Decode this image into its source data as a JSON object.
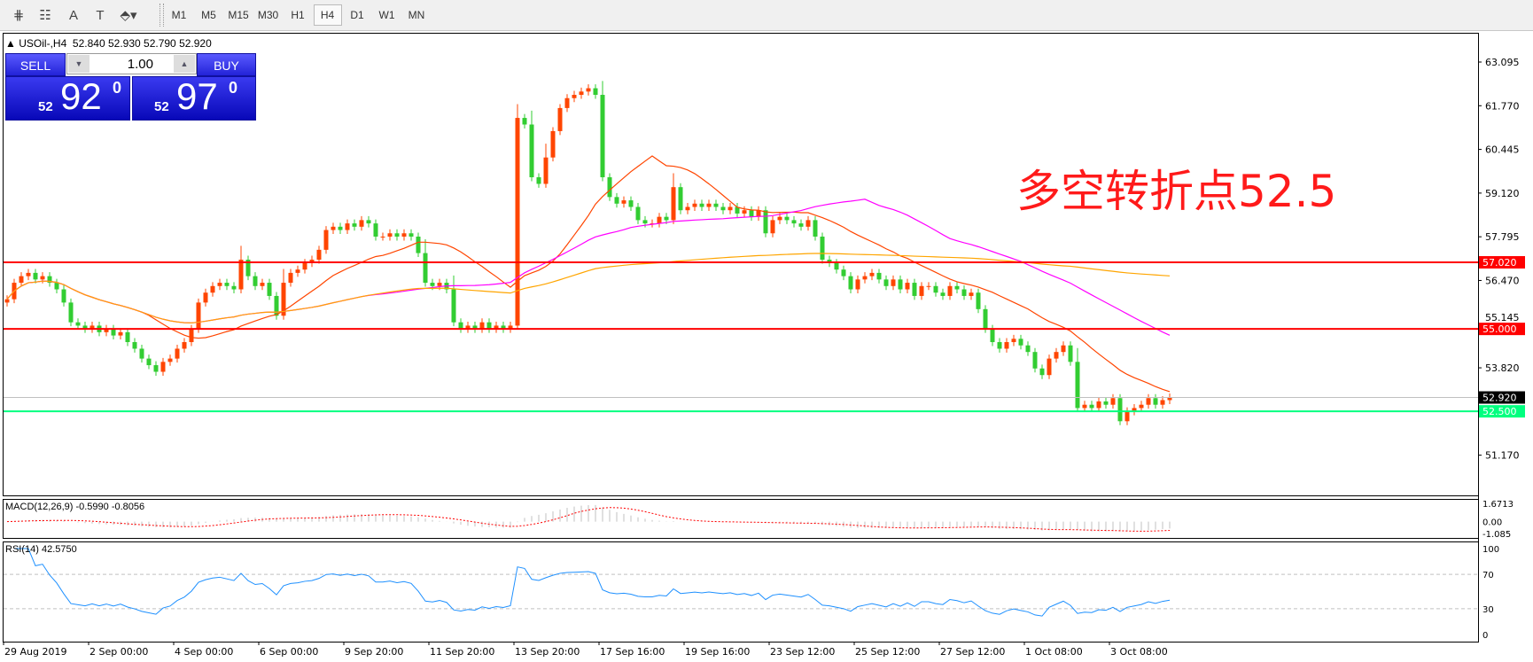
{
  "toolbar": {
    "tools": [
      {
        "name": "fibonacci-expansion-icon",
        "glyph": "⋕"
      },
      {
        "name": "fibonacci-fan-icon",
        "glyph": "☷"
      },
      {
        "name": "text-icon",
        "glyph": "A"
      },
      {
        "name": "text-label-icon",
        "glyph": "T"
      },
      {
        "name": "arrows-dropdown-icon",
        "glyph": "⬘▾"
      }
    ],
    "timeframes": [
      "M1",
      "M5",
      "M15",
      "M30",
      "H1",
      "H4",
      "D1",
      "W1",
      "MN"
    ],
    "active_timeframe": "H4"
  },
  "chart": {
    "symbol": "USOil-,H4",
    "open": "52.840",
    "high": "52.930",
    "low": "52.790",
    "close": "52.920"
  },
  "trade_panel": {
    "sell_label": "SELL",
    "buy_label": "BUY",
    "lot": "1.00",
    "sell_price": {
      "prefix": "52",
      "main": "92",
      "sup": "0"
    },
    "buy_price": {
      "prefix": "52",
      "main": "97",
      "sup": "0"
    }
  },
  "annotation": "多空转折点52.5",
  "colors": {
    "bull": "#ff4500",
    "bear": "#32cd32",
    "ma_fast": "#ff4500",
    "ma_mid": "#ff00ff",
    "ma_slow": "#ffa500",
    "level_red": "#ff0000",
    "level_green": "#00ff7f",
    "rsi_line": "#1e90ff",
    "macd_signal": "#ff0000",
    "macd_hist": "#c0c0c0"
  },
  "chart_data": {
    "type": "candlestick",
    "timeframe": "H4",
    "price_axis": {
      "ylim": [
        50.9,
        64.0
      ],
      "ticks": [
        "63.095",
        "61.770",
        "60.445",
        "59.120",
        "57.795",
        "56.470",
        "55.145",
        "53.820",
        "51.170"
      ]
    },
    "levels": [
      {
        "value": 57.02,
        "label": "57.020",
        "color": "#ff0000"
      },
      {
        "value": 55.0,
        "label": "55.000",
        "color": "#ff0000"
      },
      {
        "value": 52.5,
        "label": "52.500",
        "color": "#00ff7f"
      }
    ],
    "current_price": {
      "value": 52.92,
      "label": "52.920"
    },
    "time_labels": [
      "29 Aug 2019",
      "2 Sep 00:00",
      "4 Sep 00:00",
      "6 Sep 00:00",
      "9 Sep 20:00",
      "11 Sep 20:00",
      "13 Sep 20:00",
      "17 Sep 16:00",
      "19 Sep 16:00",
      "23 Sep 12:00",
      "25 Sep 12:00",
      "27 Sep 12:00",
      "1 Oct 08:00",
      "3 Oct 08:00"
    ],
    "closes": [
      55.9,
      56.4,
      56.6,
      56.7,
      56.5,
      56.6,
      56.4,
      56.2,
      55.8,
      55.2,
      55.1,
      55.0,
      55.1,
      54.9,
      55.0,
      54.8,
      54.9,
      54.6,
      54.4,
      54.1,
      53.9,
      53.7,
      54.0,
      54.1,
      54.4,
      54.6,
      55.0,
      55.8,
      56.1,
      56.3,
      56.4,
      56.3,
      56.2,
      57.1,
      56.6,
      56.3,
      56.4,
      56.0,
      55.4,
      56.4,
      56.7,
      56.8,
      57.0,
      57.1,
      57.4,
      58.0,
      58.1,
      58.0,
      58.2,
      58.1,
      58.3,
      58.2,
      57.8,
      57.8,
      57.9,
      57.8,
      57.9,
      57.8,
      57.3,
      56.4,
      56.3,
      56.4,
      56.2,
      55.2,
      55.0,
      55.1,
      55.0,
      55.2,
      55.0,
      55.1,
      55.0,
      55.1,
      61.4,
      61.2,
      59.6,
      59.4,
      60.2,
      61.0,
      61.7,
      62.0,
      62.1,
      62.2,
      62.3,
      62.1,
      59.6,
      59.0,
      58.8,
      58.9,
      58.7,
      58.3,
      58.2,
      58.2,
      58.4,
      58.3,
      59.3,
      58.6,
      58.7,
      58.8,
      58.7,
      58.8,
      58.7,
      58.6,
      58.7,
      58.5,
      58.6,
      58.4,
      58.6,
      57.9,
      58.3,
      58.4,
      58.3,
      58.2,
      58.1,
      58.3,
      57.8,
      57.1,
      57.0,
      56.8,
      56.6,
      56.2,
      56.5,
      56.6,
      56.7,
      56.5,
      56.3,
      56.5,
      56.2,
      56.4,
      56.0,
      56.3,
      56.3,
      56.1,
      56.0,
      56.3,
      56.2,
      56.0,
      56.1,
      55.6,
      55.0,
      54.6,
      54.4,
      54.6,
      54.7,
      54.5,
      54.3,
      53.8,
      53.6,
      54.1,
      54.3,
      54.5,
      54.0,
      52.6,
      52.7,
      52.6,
      52.8,
      52.7,
      52.9,
      52.2,
      52.5,
      52.6,
      52.7,
      52.9,
      52.7,
      52.84,
      52.92
    ],
    "macd": {
      "label": "MACD(12,26,9) -0.5990 -0.8056",
      "ticks": [
        "1.6713",
        "0.00",
        "-1.085"
      ],
      "ylim": [
        -1.085,
        1.6713
      ]
    },
    "rsi": {
      "label": "RSI(14) 42.5750",
      "ticks": [
        "100",
        "70",
        "30",
        "0"
      ],
      "levels": [
        70,
        30
      ],
      "ylim": [
        0,
        100
      ]
    }
  }
}
